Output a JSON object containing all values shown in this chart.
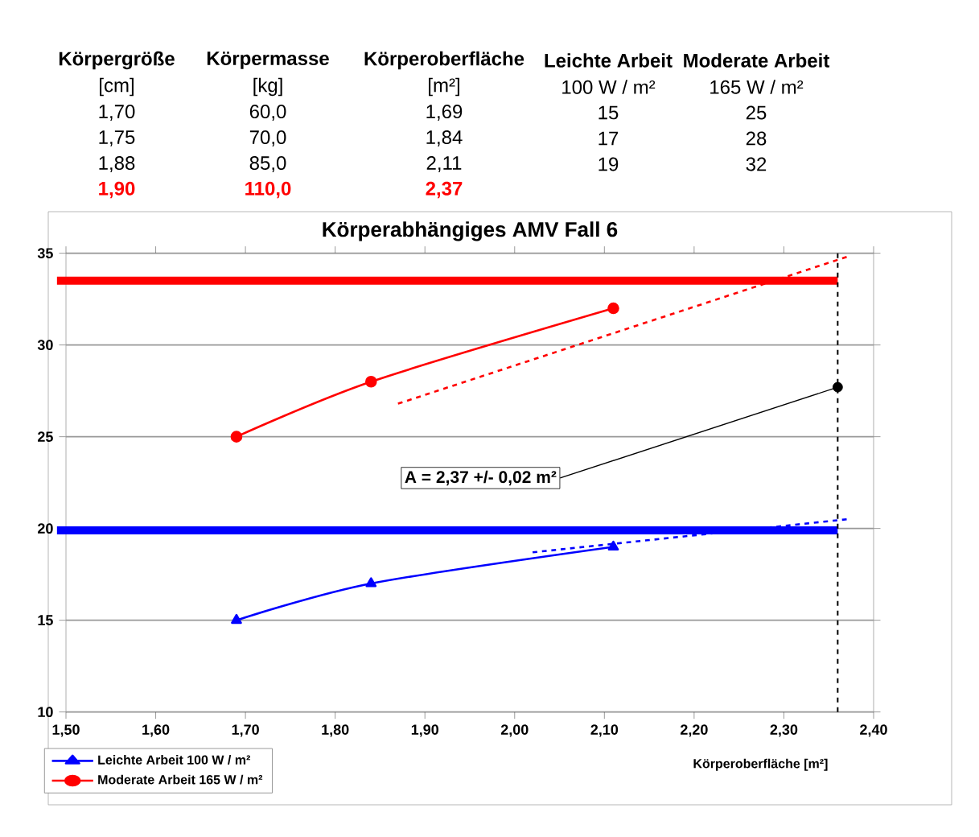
{
  "chart_data": [
    {
      "type": "other",
      "categories": [
        "Körpergröße",
        "Körpermasse",
        "Körperoberfläche",
        "Leichte Arbeit",
        "Moderate Arbeit"
      ],
      "annotations": [
        "[cm]",
        "[kg]",
        "[m²]",
        "100 W / m²",
        "165 W / m²",
        "1,70",
        "60,0",
        "1,69",
        "15",
        "25",
        "1,75",
        "70,0",
        "1,84",
        "17",
        "28",
        "1,88",
        "85,0",
        "2,11",
        "19",
        "32",
        "1,90",
        "110,0",
        "2,37"
      ]
    },
    {
      "type": "line",
      "title": "Körperabhängiges AMV Fall 6",
      "xlabel": "Körperoberfläche [m²]",
      "series": [
        {
          "name": "Leichte Arbeit 100 W / m²",
          "color": "#0000ff",
          "x": [
            1.69,
            1.84,
            2.11
          ],
          "values": [
            15,
            17,
            19
          ],
          "marker": "triangle"
        },
        {
          "name": "Moderate Arbeit 165 W / m²",
          "color": "#ff0000",
          "x": [
            1.69,
            1.84,
            2.11
          ],
          "values": [
            25,
            28,
            32
          ],
          "marker": "circle"
        },
        {
          "type": "line",
          "color": "#ff0000",
          "x": [
            1.87,
            2.37
          ],
          "values": [
            26.8,
            34.8
          ],
          "marker": "none",
          "line_style": "dashed"
        },
        {
          "type": "line",
          "color": "#0000ff",
          "x": [
            2.02,
            2.37
          ],
          "values": [
            18.7,
            20.5
          ],
          "marker": "none",
          "line_style": "dashed"
        },
        {
          "type": "scatter",
          "color": "#000000",
          "x": [
            2.36
          ],
          "values": [
            27.7
          ],
          "marker": "circle"
        }
      ],
      "ref_lines": [
        {
          "axis": "y",
          "value": 33.5,
          "color": "#ff0000"
        },
        {
          "axis": "y",
          "value": 19.9,
          "color": "#0000ff"
        },
        {
          "axis": "x",
          "value": 2.36,
          "color": "#000000",
          "line_style": "dashed"
        }
      ],
      "annotations": [
        {
          "text": "A = 2,37 +/- 0,02 m²",
          "x": 2.36,
          "y": 27.7
        }
      ],
      "xlim": [
        1.5,
        2.4
      ],
      "ylim": [
        10,
        35
      ],
      "xticks": [
        {
          "value": 1.5,
          "label": "1,50"
        },
        {
          "value": 1.6,
          "label": "1,60"
        },
        {
          "value": 1.7,
          "label": "1,70"
        },
        {
          "value": 1.8,
          "label": "1,80"
        },
        {
          "value": 1.9,
          "label": "1,90"
        },
        {
          "value": 2.0,
          "label": "2,00"
        },
        {
          "value": 2.1,
          "label": "2,10"
        },
        {
          "value": 2.2,
          "label": "2,20"
        },
        {
          "value": 2.3,
          "label": "2,30"
        },
        {
          "value": 2.4,
          "label": "2,40"
        }
      ],
      "yticks": [
        10,
        15,
        20,
        25,
        30,
        35
      ],
      "grid": "y",
      "legend": "bottom left"
    }
  ]
}
